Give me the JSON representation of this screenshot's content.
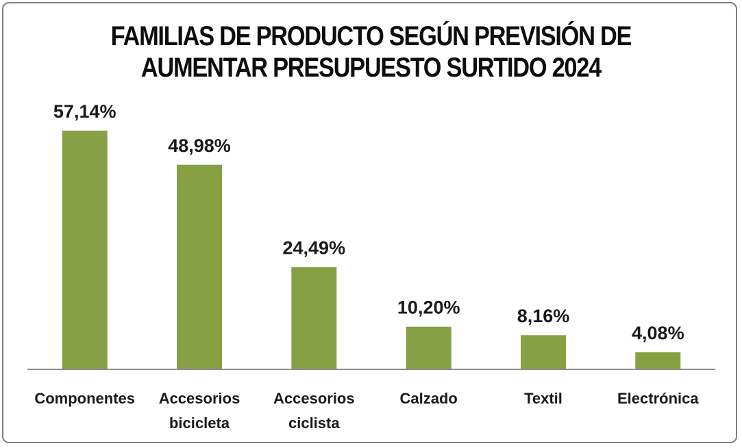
{
  "chart_data": {
    "type": "bar",
    "title_lines": [
      "FAMILIAS DE PRODUCTO SEGÚN PREVISIÓN DE",
      "AUMENTAR PRESUPUESTO SURTIDO 2024"
    ],
    "categories": [
      [
        "Componentes"
      ],
      [
        "Accesorios",
        "bicicleta"
      ],
      [
        "Accesorios",
        "ciclista"
      ],
      [
        "Calzado"
      ],
      [
        "Textil"
      ],
      [
        "Electrónica"
      ]
    ],
    "values": [
      57.14,
      48.98,
      24.49,
      10.2,
      8.16,
      4.08
    ],
    "value_labels": [
      "57,14%",
      "48,98%",
      "24,49%",
      "10,20%",
      "8,16%",
      "4,08%"
    ],
    "bar_color": "#86a044",
    "axis_color": "#8c8c8c",
    "ylim": [
      0,
      57.14
    ],
    "grid": false,
    "legend": "none"
  }
}
